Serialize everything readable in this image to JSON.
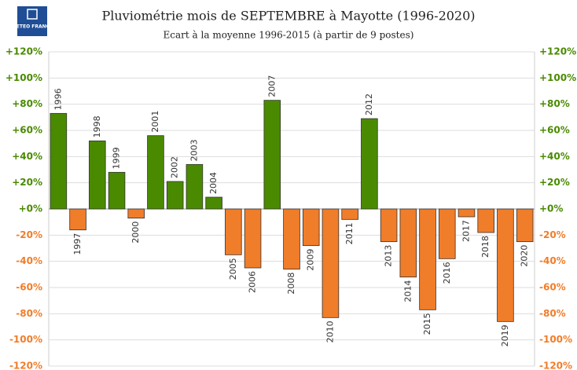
{
  "logo": "METEO FRANCE",
  "chart_data": {
    "type": "bar",
    "title": "Pluviométrie mois de SEPTEMBRE à Mayotte (1996-2020)",
    "subtitle": "Ecart à la moyenne 1996-2015 (à partir de 9 postes)",
    "categories": [
      "1996",
      "1997",
      "1998",
      "1999",
      "2000",
      "2001",
      "2002",
      "2003",
      "2004",
      "2005",
      "2006",
      "2007",
      "2008",
      "2009",
      "2010",
      "2011",
      "2012",
      "2013",
      "2014",
      "2015",
      "2016",
      "2017",
      "2018",
      "2019",
      "2020"
    ],
    "values": [
      73,
      -16,
      52,
      28,
      -7,
      56,
      21,
      34,
      9,
      -35,
      -45,
      83,
      -46,
      -28,
      -83,
      -8,
      69,
      -25,
      -52,
      -77,
      -38,
      -6,
      -18,
      -86,
      -25
    ],
    "positive_color": "#4a8a00",
    "negative_color": "#f07d2a",
    "ylim": [
      -120,
      120
    ],
    "yticks": [
      {
        "value": -120,
        "label": "-120%"
      },
      {
        "value": -100,
        "label": "-100%"
      },
      {
        "value": -80,
        "label": "-80%"
      },
      {
        "value": -60,
        "label": "-60%"
      },
      {
        "value": -40,
        "label": "-40%"
      },
      {
        "value": -20,
        "label": "-20%"
      },
      {
        "value": 0,
        "label": "+0%"
      },
      {
        "value": 20,
        "label": "+20%"
      },
      {
        "value": 40,
        "label": "+40%"
      },
      {
        "value": 60,
        "label": "+60%"
      },
      {
        "value": 80,
        "label": "+80%"
      },
      {
        "value": 100,
        "label": "+100%"
      },
      {
        "value": 120,
        "label": "+120%"
      }
    ],
    "grid": true
  }
}
